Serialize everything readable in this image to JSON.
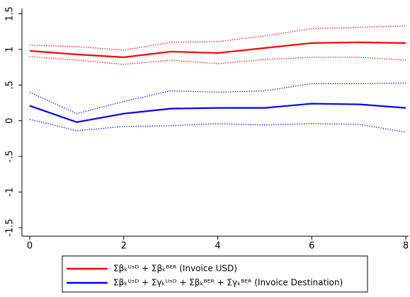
{
  "chart_data": {
    "type": "line",
    "x": [
      0,
      1,
      2,
      3,
      4,
      5,
      6,
      7,
      8
    ],
    "xlim": [
      0,
      8
    ],
    "xticks": [
      0,
      2,
      4,
      6,
      8
    ],
    "ylim": [
      -1.5,
      1.5
    ],
    "yticks": [
      -1.5,
      -1,
      {
        "value": -0.5,
        "label": "-.5"
      },
      0,
      {
        "value": 0.5,
        "label": ".5"
      },
      1,
      1.5
    ],
    "grid": false,
    "series": [
      {
        "name": "Σβₖᵁˢᴰ + Σβₖᴮᴱᴿ (Invoice USD)",
        "color": "#ff0000",
        "style": "solid",
        "values": [
          0.98,
          0.93,
          0.89,
          0.97,
          0.95,
          1.02,
          1.09,
          1.1,
          1.09
        ]
      },
      {
        "color": "#ff0000",
        "style": "dotted",
        "values": [
          1.06,
          1.04,
          0.99,
          1.1,
          1.11,
          1.19,
          1.29,
          1.31,
          1.33
        ]
      },
      {
        "color": "#ff0000",
        "style": "dotted",
        "values": [
          0.9,
          0.85,
          0.79,
          0.85,
          0.8,
          0.86,
          0.89,
          0.89,
          0.85
        ]
      },
      {
        "name": "Σβₖᵁˢᴰ + Σγₖᵁˢᴰ + Σβₖᴮᴱᴿ + Σγₖᴮᴱᴿ (Invoice Destination)",
        "color": "#0000ff",
        "style": "solid",
        "values": [
          0.21,
          -0.02,
          0.1,
          0.17,
          0.18,
          0.18,
          0.24,
          0.23,
          0.18
        ]
      },
      {
        "color": "#0000ff",
        "style": "dotted",
        "values": [
          0.4,
          0.1,
          0.27,
          0.42,
          0.4,
          0.42,
          0.52,
          0.52,
          0.53
        ]
      },
      {
        "color": "#0000ff",
        "style": "dotted",
        "values": [
          0.02,
          -0.14,
          -0.08,
          -0.07,
          -0.04,
          -0.06,
          -0.04,
          -0.05,
          -0.16
        ]
      }
    ]
  }
}
